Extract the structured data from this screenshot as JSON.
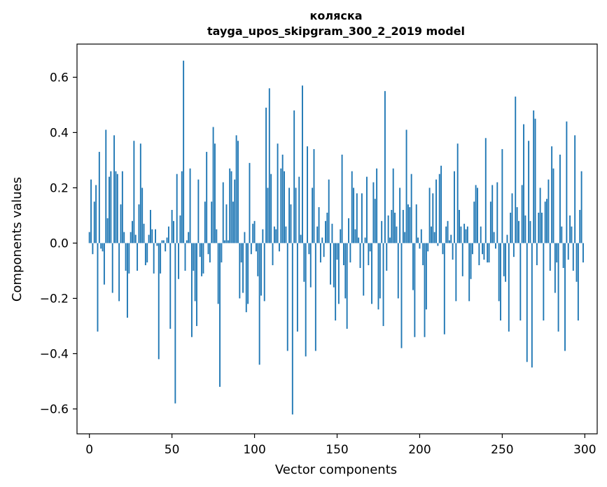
{
  "chart_data": {
    "type": "bar",
    "title": "коляска",
    "subtitle": "tayga_upos_skipgram_300_2_2019 model",
    "xlabel": "Vector components",
    "ylabel": "Components values",
    "xlim": [
      -7.5,
      307.5
    ],
    "ylim": [
      -0.69,
      0.72
    ],
    "xticks": [
      0,
      50,
      100,
      150,
      200,
      250,
      300
    ],
    "xtick_labels": [
      "0",
      "50",
      "100",
      "150",
      "200",
      "250",
      "300"
    ],
    "yticks": [
      -0.6,
      -0.4,
      -0.2,
      0.0,
      0.2,
      0.4,
      0.6
    ],
    "ytick_labels": [
      "−0.6",
      "−0.4",
      "−0.2",
      "0.0",
      "0.2",
      "0.4",
      "0.6"
    ],
    "bar_color": "#1f77b4",
    "grid": false,
    "x": "0..299",
    "values": [
      0.04,
      0.23,
      -0.04,
      0.15,
      0.21,
      -0.32,
      0.33,
      -0.02,
      -0.03,
      -0.15,
      0.41,
      0.09,
      0.24,
      0.26,
      -0.18,
      0.39,
      0.26,
      0.25,
      -0.21,
      0.14,
      0.26,
      0.04,
      -0.1,
      -0.27,
      -0.11,
      0.04,
      0.08,
      0.37,
      0.03,
      -0.1,
      0.14,
      0.36,
      0.2,
      0.07,
      -0.08,
      -0.07,
      0.03,
      0.12,
      0.05,
      -0.11,
      0.05,
      -0.01,
      -0.42,
      -0.11,
      0.01,
      0.01,
      -0.03,
      0.02,
      0.06,
      -0.31,
      0.12,
      0.08,
      -0.58,
      0.25,
      -0.13,
      0.1,
      0.26,
      0.66,
      -0.1,
      0.01,
      0.04,
      0.27,
      -0.34,
      -0.1,
      -0.21,
      -0.3,
      0.23,
      -0.05,
      -0.12,
      -0.11,
      0.15,
      0.33,
      -0.04,
      -0.07,
      0.15,
      0.42,
      0.36,
      0.05,
      -0.22,
      -0.52,
      -0.07,
      0.22,
      0.01,
      0.14,
      0.01,
      0.27,
      0.26,
      0.15,
      0.23,
      0.39,
      0.37,
      -0.2,
      -0.07,
      -0.18,
      0.04,
      -0.25,
      -0.22,
      0.29,
      -0.04,
      0.07,
      0.08,
      -0.03,
      -0.12,
      -0.44,
      -0.19,
      0.05,
      -0.21,
      0.49,
      0.2,
      0.56,
      0.25,
      -0.08,
      0.06,
      0.05,
      0.36,
      -0.03,
      0.27,
      0.32,
      0.26,
      0.06,
      -0.39,
      0.2,
      0.14,
      -0.62,
      0.48,
      0.2,
      -0.32,
      0.24,
      0.03,
      0.57,
      -0.14,
      -0.41,
      0.35,
      -0.04,
      -0.16,
      0.2,
      0.34,
      -0.39,
      0.06,
      0.13,
      -0.07,
      0.02,
      -0.05,
      0.08,
      0.11,
      0.23,
      -0.15,
      0.07,
      -0.16,
      -0.28,
      -0.06,
      -0.22,
      0.05,
      0.32,
      -0.08,
      -0.2,
      -0.31,
      0.09,
      -0.07,
      0.26,
      0.2,
      0.05,
      0.18,
      0.02,
      -0.09,
      0.18,
      -0.19,
      0.02,
      0.24,
      -0.08,
      -0.03,
      -0.22,
      0.22,
      0.16,
      0.27,
      -0.24,
      -0.2,
      0.08,
      -0.3,
      0.55,
      -0.1,
      0.1,
      0.02,
      0.12,
      0.27,
      0.11,
      0.06,
      -0.2,
      0.2,
      -0.38,
      0.12,
      0.04,
      0.41,
      0.14,
      0.13,
      0.25,
      -0.17,
      -0.34,
      0.14,
      0.02,
      -0.02,
      0.05,
      -0.08,
      -0.34,
      -0.24,
      -0.03,
      0.2,
      0.06,
      0.18,
      0.04,
      0.23,
      -0.01,
      0.25,
      0.28,
      -0.04,
      -0.33,
      0.06,
      0.08,
      0.01,
      0.03,
      -0.06,
      0.26,
      -0.21,
      0.36,
      0.12,
      0.06,
      -0.12,
      0.07,
      0.05,
      0.06,
      -0.21,
      -0.13,
      -0.04,
      0.15,
      0.21,
      0.2,
      -0.08,
      0.06,
      -0.04,
      -0.06,
      0.38,
      -0.07,
      -0.07,
      0.15,
      0.21,
      0.04,
      -0.02,
      0.22,
      -0.21,
      -0.28,
      0.34,
      -0.12,
      -0.14,
      0.03,
      -0.32,
      0.11,
      0.18,
      -0.05,
      0.53,
      0.13,
      0.08,
      -0.28,
      0.21,
      0.43,
      0.1,
      -0.43,
      0.37,
      0.08,
      -0.45,
      0.48,
      0.45,
      -0.08,
      0.11,
      0.2,
      0.11,
      -0.28,
      0.15,
      0.16,
      0.23,
      -0.1,
      0.35,
      0.27,
      -0.18,
      -0.07,
      -0.32,
      0.32,
      0.06,
      -0.09,
      -0.39,
      0.44,
      -0.06,
      0.1,
      0.06,
      -0.1,
      0.39,
      -0.14,
      -0.28,
      0.12,
      0.26,
      -0.07
    ]
  }
}
